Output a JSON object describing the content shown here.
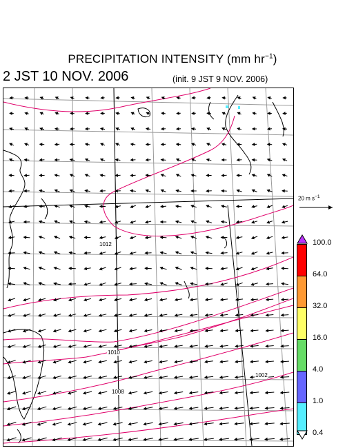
{
  "title": "PRECIPITATION INTENSITY (mm hr",
  "title_sup": "−1",
  "title_close": ")",
  "valid_time": "2 JST 10 NOV. 2006",
  "init_time": "(init. 9 JST 9 NOV. 2006)",
  "wind_reference": {
    "label_main": "20 m s",
    "label_sup": "−1",
    "speed": 20,
    "unit": "m s−1"
  },
  "contour_labels": [
    "1012",
    "1010",
    "1008",
    "1002"
  ],
  "legend": {
    "levels": [
      "100.0",
      "64.0",
      "32.0",
      "16.0",
      "4.0",
      "1.0",
      "0.4"
    ],
    "colors": [
      "#ff0000",
      "#ff9933",
      "#ffff66",
      "#66dd66",
      "#6666ff",
      "#55eeff"
    ],
    "over_color": "#bb33ff",
    "under_color": "#ffffff"
  },
  "colors": {
    "isobar": "#e0006a",
    "grid": "#999999",
    "coast": "#000000"
  }
}
